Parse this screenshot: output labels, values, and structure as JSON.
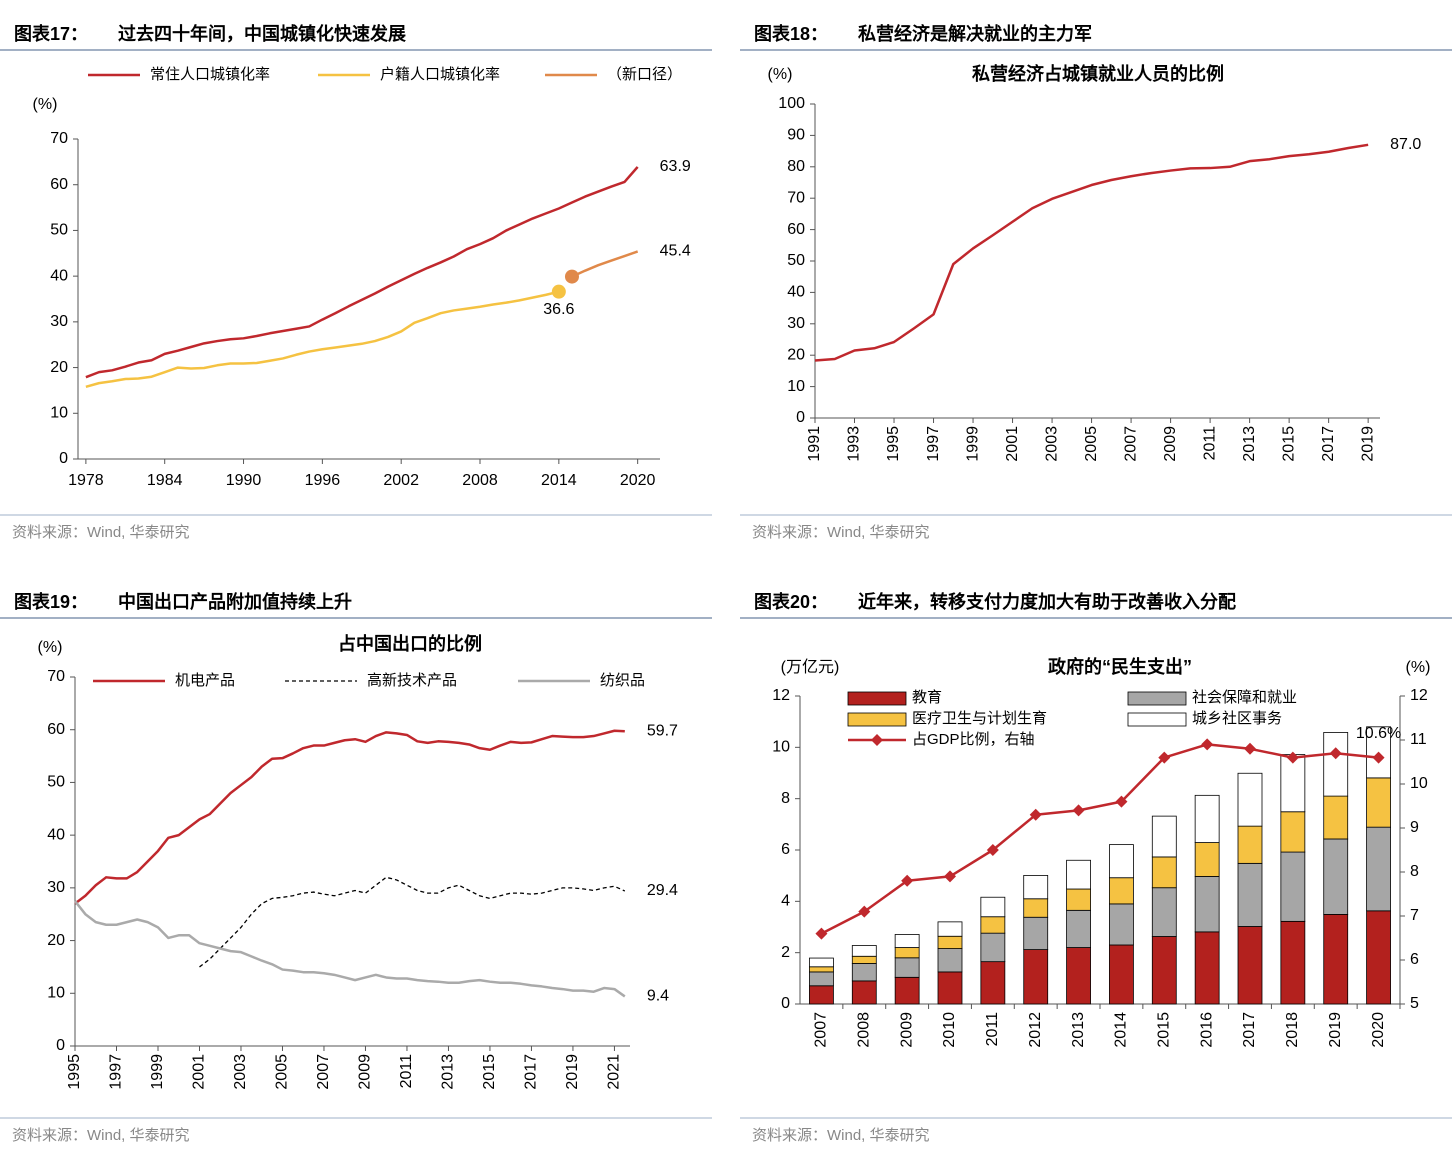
{
  "chart_data": [
    {
      "type": "line",
      "label": "图表17：",
      "title": "过去四十年间，中国城镇化快速发展",
      "source": "资料来源：Wind, 华泰研究",
      "y_unit": "(%)",
      "x": [
        1978,
        1979,
        1980,
        1981,
        1982,
        1983,
        1984,
        1985,
        1986,
        1987,
        1988,
        1989,
        1990,
        1991,
        1992,
        1993,
        1994,
        1995,
        1996,
        1997,
        1998,
        1999,
        2000,
        2001,
        2002,
        2003,
        2004,
        2005,
        2006,
        2007,
        2008,
        2009,
        2010,
        2011,
        2012,
        2013,
        2014,
        2015,
        2016,
        2017,
        2018,
        2019,
        2020
      ],
      "xlim": [
        1977.4,
        2021.7
      ],
      "xticks": [
        1978,
        1984,
        1990,
        1996,
        2002,
        2008,
        2014,
        2020
      ],
      "ylim": [
        0,
        70
      ],
      "yticks": [
        0,
        10,
        20,
        30,
        40,
        50,
        60,
        70
      ],
      "series": [
        {
          "name": "常住人口城镇化率",
          "color": "#c0282d",
          "label_color": "#c0282d",
          "values": [
            17.9,
            19.0,
            19.4,
            20.2,
            21.1,
            21.6,
            23.0,
            23.7,
            24.5,
            25.3,
            25.8,
            26.2,
            26.4,
            26.9,
            27.5,
            28.0,
            28.5,
            29.0,
            30.5,
            31.9,
            33.4,
            34.8,
            36.2,
            37.7,
            39.1,
            40.5,
            41.8,
            43.0,
            44.3,
            45.9,
            47.0,
            48.3,
            50.0,
            51.3,
            52.6,
            53.7,
            54.8,
            56.1,
            57.4,
            58.5,
            59.6,
            60.6,
            63.9
          ],
          "value_labels": [
            null,
            null,
            null,
            null,
            null,
            null,
            null,
            null,
            null,
            null,
            null,
            null,
            null,
            null,
            null,
            null,
            null,
            null,
            null,
            null,
            null,
            null,
            null,
            null,
            null,
            null,
            null,
            null,
            null,
            null,
            null,
            null,
            null,
            null,
            null,
            null,
            null,
            null,
            null,
            null,
            null,
            null,
            "63.9"
          ]
        },
        {
          "name": "户籍人口城镇化率",
          "color": "#f5c242",
          "label_color": "#000000",
          "marker": "end",
          "values": [
            15.8,
            16.6,
            17.0,
            17.5,
            17.6,
            18.0,
            19.0,
            20.0,
            19.8,
            19.9,
            20.5,
            20.9,
            20.9,
            21.0,
            21.5,
            22.0,
            22.8,
            23.5,
            24.0,
            24.4,
            24.8,
            25.2,
            25.8,
            26.7,
            27.9,
            29.8,
            30.8,
            31.9,
            32.5,
            32.9,
            33.3,
            33.8,
            34.2,
            34.7,
            35.3,
            35.9,
            36.6,
            null,
            null,
            null,
            null,
            null,
            null
          ],
          "value_labels": [
            null,
            null,
            null,
            null,
            null,
            null,
            null,
            null,
            null,
            null,
            null,
            null,
            null,
            null,
            null,
            null,
            null,
            null,
            null,
            null,
            null,
            null,
            null,
            null,
            null,
            null,
            null,
            null,
            null,
            null,
            null,
            null,
            null,
            null,
            null,
            null,
            "36.6",
            null,
            null,
            null,
            null,
            null,
            null
          ]
        },
        {
          "name": "（新口径）",
          "color": "#e0894a",
          "label_color": "#000000",
          "marker": "start",
          "values": [
            null,
            null,
            null,
            null,
            null,
            null,
            null,
            null,
            null,
            null,
            null,
            null,
            null,
            null,
            null,
            null,
            null,
            null,
            null,
            null,
            null,
            null,
            null,
            null,
            null,
            null,
            null,
            null,
            null,
            null,
            null,
            null,
            null,
            null,
            null,
            null,
            null,
            39.9,
            41.2,
            42.4,
            43.4,
            44.4,
            45.4
          ],
          "value_labels": [
            null,
            null,
            null,
            null,
            null,
            null,
            null,
            null,
            null,
            null,
            null,
            null,
            null,
            null,
            null,
            null,
            null,
            null,
            null,
            null,
            null,
            null,
            null,
            null,
            null,
            null,
            null,
            null,
            null,
            null,
            null,
            null,
            null,
            null,
            null,
            null,
            null,
            null,
            null,
            null,
            null,
            null,
            "45.4"
          ]
        }
      ]
    },
    {
      "type": "line",
      "label": "图表18：",
      "title": "私营经济是解决就业的主力军",
      "source": "资料来源：Wind, 华泰研究",
      "y_unit": "(%)",
      "subtitle": "私营经济占城镇就业人员的比例",
      "x": [
        1991,
        1992,
        1993,
        1994,
        1995,
        1996,
        1997,
        1998,
        1999,
        2000,
        2001,
        2002,
        2003,
        2004,
        2005,
        2006,
        2007,
        2008,
        2009,
        2010,
        2011,
        2012,
        2013,
        2014,
        2015,
        2016,
        2017,
        2018,
        2019
      ],
      "xlim": [
        1991,
        2019.6
      ],
      "xticks": [
        1991,
        1993,
        1995,
        1997,
        1999,
        2001,
        2003,
        2005,
        2007,
        2009,
        2011,
        2013,
        2015,
        2017,
        2019
      ],
      "ylim": [
        0,
        100
      ],
      "yticks": [
        0,
        10,
        20,
        30,
        40,
        50,
        60,
        70,
        80,
        90,
        100
      ],
      "series": [
        {
          "color": "#c0282d",
          "label_color": "#000000",
          "values": [
            18.3,
            18.8,
            21.5,
            22.2,
            24.2,
            28.5,
            33.0,
            49.0,
            54.0,
            58.2,
            62.5,
            66.8,
            69.8,
            72.0,
            74.2,
            75.8,
            77.0,
            78.0,
            78.8,
            79.5,
            79.6,
            80.0,
            81.8,
            82.4,
            83.4,
            84.0,
            84.8,
            86.0,
            87.0
          ],
          "value_labels": [
            null,
            null,
            null,
            null,
            null,
            null,
            null,
            null,
            null,
            null,
            null,
            null,
            null,
            null,
            null,
            null,
            null,
            null,
            null,
            null,
            null,
            null,
            null,
            null,
            null,
            null,
            null,
            null,
            "87.0"
          ]
        }
      ]
    },
    {
      "type": "line",
      "label": "图表19：",
      "title": "中国出口产品附加值持续上升",
      "source": "资料来源：Wind, 华泰研究",
      "y_unit": "(%)",
      "subtitle": "占中国出口的比例",
      "x": [
        1995,
        1995.5,
        1996,
        1996.5,
        1997,
        1997.5,
        1998,
        1998.5,
        1999,
        1999.5,
        2000,
        2000.5,
        2001,
        2001.5,
        2002,
        2002.5,
        2003,
        2003.5,
        2004,
        2004.5,
        2005,
        2005.5,
        2006,
        2006.5,
        2007,
        2007.5,
        2008,
        2008.5,
        2009,
        2009.5,
        2010,
        2010.5,
        2011,
        2011.5,
        2012,
        2012.5,
        2013,
        2013.5,
        2014,
        2014.5,
        2015,
        2015.5,
        2016,
        2016.5,
        2017,
        2017.5,
        2018,
        2018.5,
        2019,
        2019.5,
        2020,
        2020.5,
        2021,
        2021.5
      ],
      "xlim": [
        1995,
        2021.75
      ],
      "xticks": [
        1995,
        1997,
        1999,
        2001,
        2003,
        2005,
        2007,
        2009,
        2011,
        2013,
        2015,
        2017,
        2019,
        2021
      ],
      "ylim": [
        0,
        70
      ],
      "yticks": [
        0,
        10,
        20,
        30,
        40,
        50,
        60,
        70
      ],
      "series": [
        {
          "name": "机电产品",
          "color": "#c0282d",
          "label_color": "#c0282d",
          "values": [
            27,
            28.5,
            30.5,
            32,
            31.8,
            31.8,
            33,
            35,
            37,
            39.5,
            40,
            41.5,
            43,
            44,
            46,
            48,
            49.5,
            51,
            53,
            54.5,
            54.6,
            55.5,
            56.5,
            57,
            57,
            57.5,
            58,
            58.2,
            57.7,
            58.8,
            59.5,
            59.3,
            59,
            57.8,
            57.5,
            57.8,
            57.7,
            57.5,
            57.2,
            56.5,
            56.2,
            57.0,
            57.7,
            57.5,
            57.6,
            58.2,
            58.8,
            58.7,
            58.6,
            58.6,
            58.8,
            59.3,
            59.8,
            59.7
          ],
          "value_labels": [
            null,
            null,
            null,
            null,
            null,
            null,
            null,
            null,
            null,
            null,
            null,
            null,
            null,
            null,
            null,
            null,
            null,
            null,
            null,
            null,
            null,
            null,
            null,
            null,
            null,
            null,
            null,
            null,
            null,
            null,
            null,
            null,
            null,
            null,
            null,
            null,
            null,
            null,
            null,
            null,
            null,
            null,
            null,
            null,
            null,
            null,
            null,
            null,
            null,
            null,
            null,
            null,
            null,
            "59.7"
          ]
        },
        {
          "name": "高新技术产品",
          "color": "#000000",
          "label_color": "#000000",
          "dash": true,
          "values": [
            null,
            null,
            null,
            null,
            null,
            null,
            null,
            null,
            null,
            null,
            null,
            null,
            15,
            16.5,
            18.5,
            20.5,
            22.5,
            25,
            27,
            28,
            28.2,
            28.5,
            29,
            29.2,
            28.8,
            28.5,
            29,
            29.5,
            29,
            30.5,
            32,
            31.5,
            30.5,
            29.5,
            29,
            29,
            30,
            30.5,
            29.5,
            28.5,
            28,
            28.5,
            29,
            29,
            28.8,
            29,
            29.5,
            30,
            30,
            29.8,
            29.5,
            30,
            30.3,
            29.4
          ],
          "value_labels": [
            null,
            null,
            null,
            null,
            null,
            null,
            null,
            null,
            null,
            null,
            null,
            null,
            null,
            null,
            null,
            null,
            null,
            null,
            null,
            null,
            null,
            null,
            null,
            null,
            null,
            null,
            null,
            null,
            null,
            null,
            null,
            null,
            null,
            null,
            null,
            null,
            null,
            null,
            null,
            null,
            null,
            null,
            null,
            null,
            null,
            null,
            null,
            null,
            null,
            null,
            null,
            null,
            null,
            "29.4"
          ]
        },
        {
          "name": "纺织品",
          "color": "#aaaaaa",
          "label_color": "#000000",
          "values": [
            27.5,
            25,
            23.5,
            23,
            23,
            23.5,
            24,
            23.5,
            22.5,
            20.5,
            21,
            21,
            19.5,
            19,
            18.5,
            18,
            17.8,
            17,
            16.2,
            15.5,
            14.5,
            14.3,
            14,
            14,
            13.8,
            13.5,
            13,
            12.5,
            13,
            13.5,
            13,
            12.8,
            12.8,
            12.5,
            12.3,
            12.2,
            12,
            12,
            12.3,
            12.5,
            12.2,
            12,
            12,
            11.8,
            11.5,
            11.3,
            11,
            10.8,
            10.5,
            10.5,
            10.3,
            11,
            10.8,
            9.4
          ],
          "value_labels": [
            null,
            null,
            null,
            null,
            null,
            null,
            null,
            null,
            null,
            null,
            null,
            null,
            null,
            null,
            null,
            null,
            null,
            null,
            null,
            null,
            null,
            null,
            null,
            null,
            null,
            null,
            null,
            null,
            null,
            null,
            null,
            null,
            null,
            null,
            null,
            null,
            null,
            null,
            null,
            null,
            null,
            null,
            null,
            null,
            null,
            null,
            null,
            null,
            null,
            null,
            null,
            null,
            null,
            "9.4"
          ]
        }
      ]
    },
    {
      "type": "bar",
      "label": "图表20：",
      "title": "近年来，转移支付力度加大有助于改善收入分配",
      "source": "资料来源：Wind, 华泰研究",
      "y_unit": "(万亿元)",
      "y2_unit": "(%)",
      "subtitle": "政府的“民生支出”",
      "categories": [
        "2007",
        "2008",
        "2009",
        "2010",
        "2011",
        "2012",
        "2013",
        "2014",
        "2015",
        "2016",
        "2017",
        "2018",
        "2019",
        "2020"
      ],
      "ylim": [
        0,
        12
      ],
      "yticks": [
        0,
        2,
        4,
        6,
        8,
        10,
        12
      ],
      "y2lim": [
        5,
        12
      ],
      "y2ticks": [
        5,
        6,
        7,
        8,
        9,
        10,
        11,
        12
      ],
      "series": [
        {
          "name": "教育",
          "color": "#b3211e",
          "values": [
            0.71,
            0.9,
            1.04,
            1.25,
            1.65,
            2.12,
            2.2,
            2.3,
            2.63,
            2.81,
            3.02,
            3.22,
            3.49,
            3.63
          ]
        },
        {
          "name": "社会保障和就业",
          "color": "#a6a6a6",
          "values": [
            0.54,
            0.68,
            0.76,
            0.91,
            1.11,
            1.26,
            1.45,
            1.6,
            1.9,
            2.16,
            2.46,
            2.7,
            2.94,
            3.26
          ]
        },
        {
          "name": "医疗卫生与计划生育",
          "color": "#f5c242",
          "values": [
            0.2,
            0.28,
            0.4,
            0.48,
            0.64,
            0.72,
            0.83,
            1.02,
            1.2,
            1.32,
            1.45,
            1.57,
            1.67,
            1.92
          ]
        },
        {
          "name": "城乡社区事务",
          "color": "#ffffff",
          "values": [
            0.34,
            0.42,
            0.51,
            0.56,
            0.76,
            0.91,
            1.12,
            1.29,
            1.59,
            1.84,
            2.06,
            2.23,
            2.48,
            1.99
          ]
        },
        {
          "name": "占GDP比例，右轴",
          "color": "#c0282d",
          "label_color": "#c0282d",
          "type": "line",
          "axis": "y2",
          "marker": "diamond",
          "values": [
            6.6,
            7.1,
            7.8,
            7.9,
            8.5,
            9.3,
            9.4,
            9.6,
            10.6,
            10.9,
            10.8,
            10.6,
            10.7,
            10.6
          ],
          "value_labels": [
            null,
            null,
            null,
            null,
            null,
            null,
            null,
            null,
            null,
            null,
            null,
            null,
            null,
            "10.6%"
          ]
        }
      ]
    }
  ]
}
